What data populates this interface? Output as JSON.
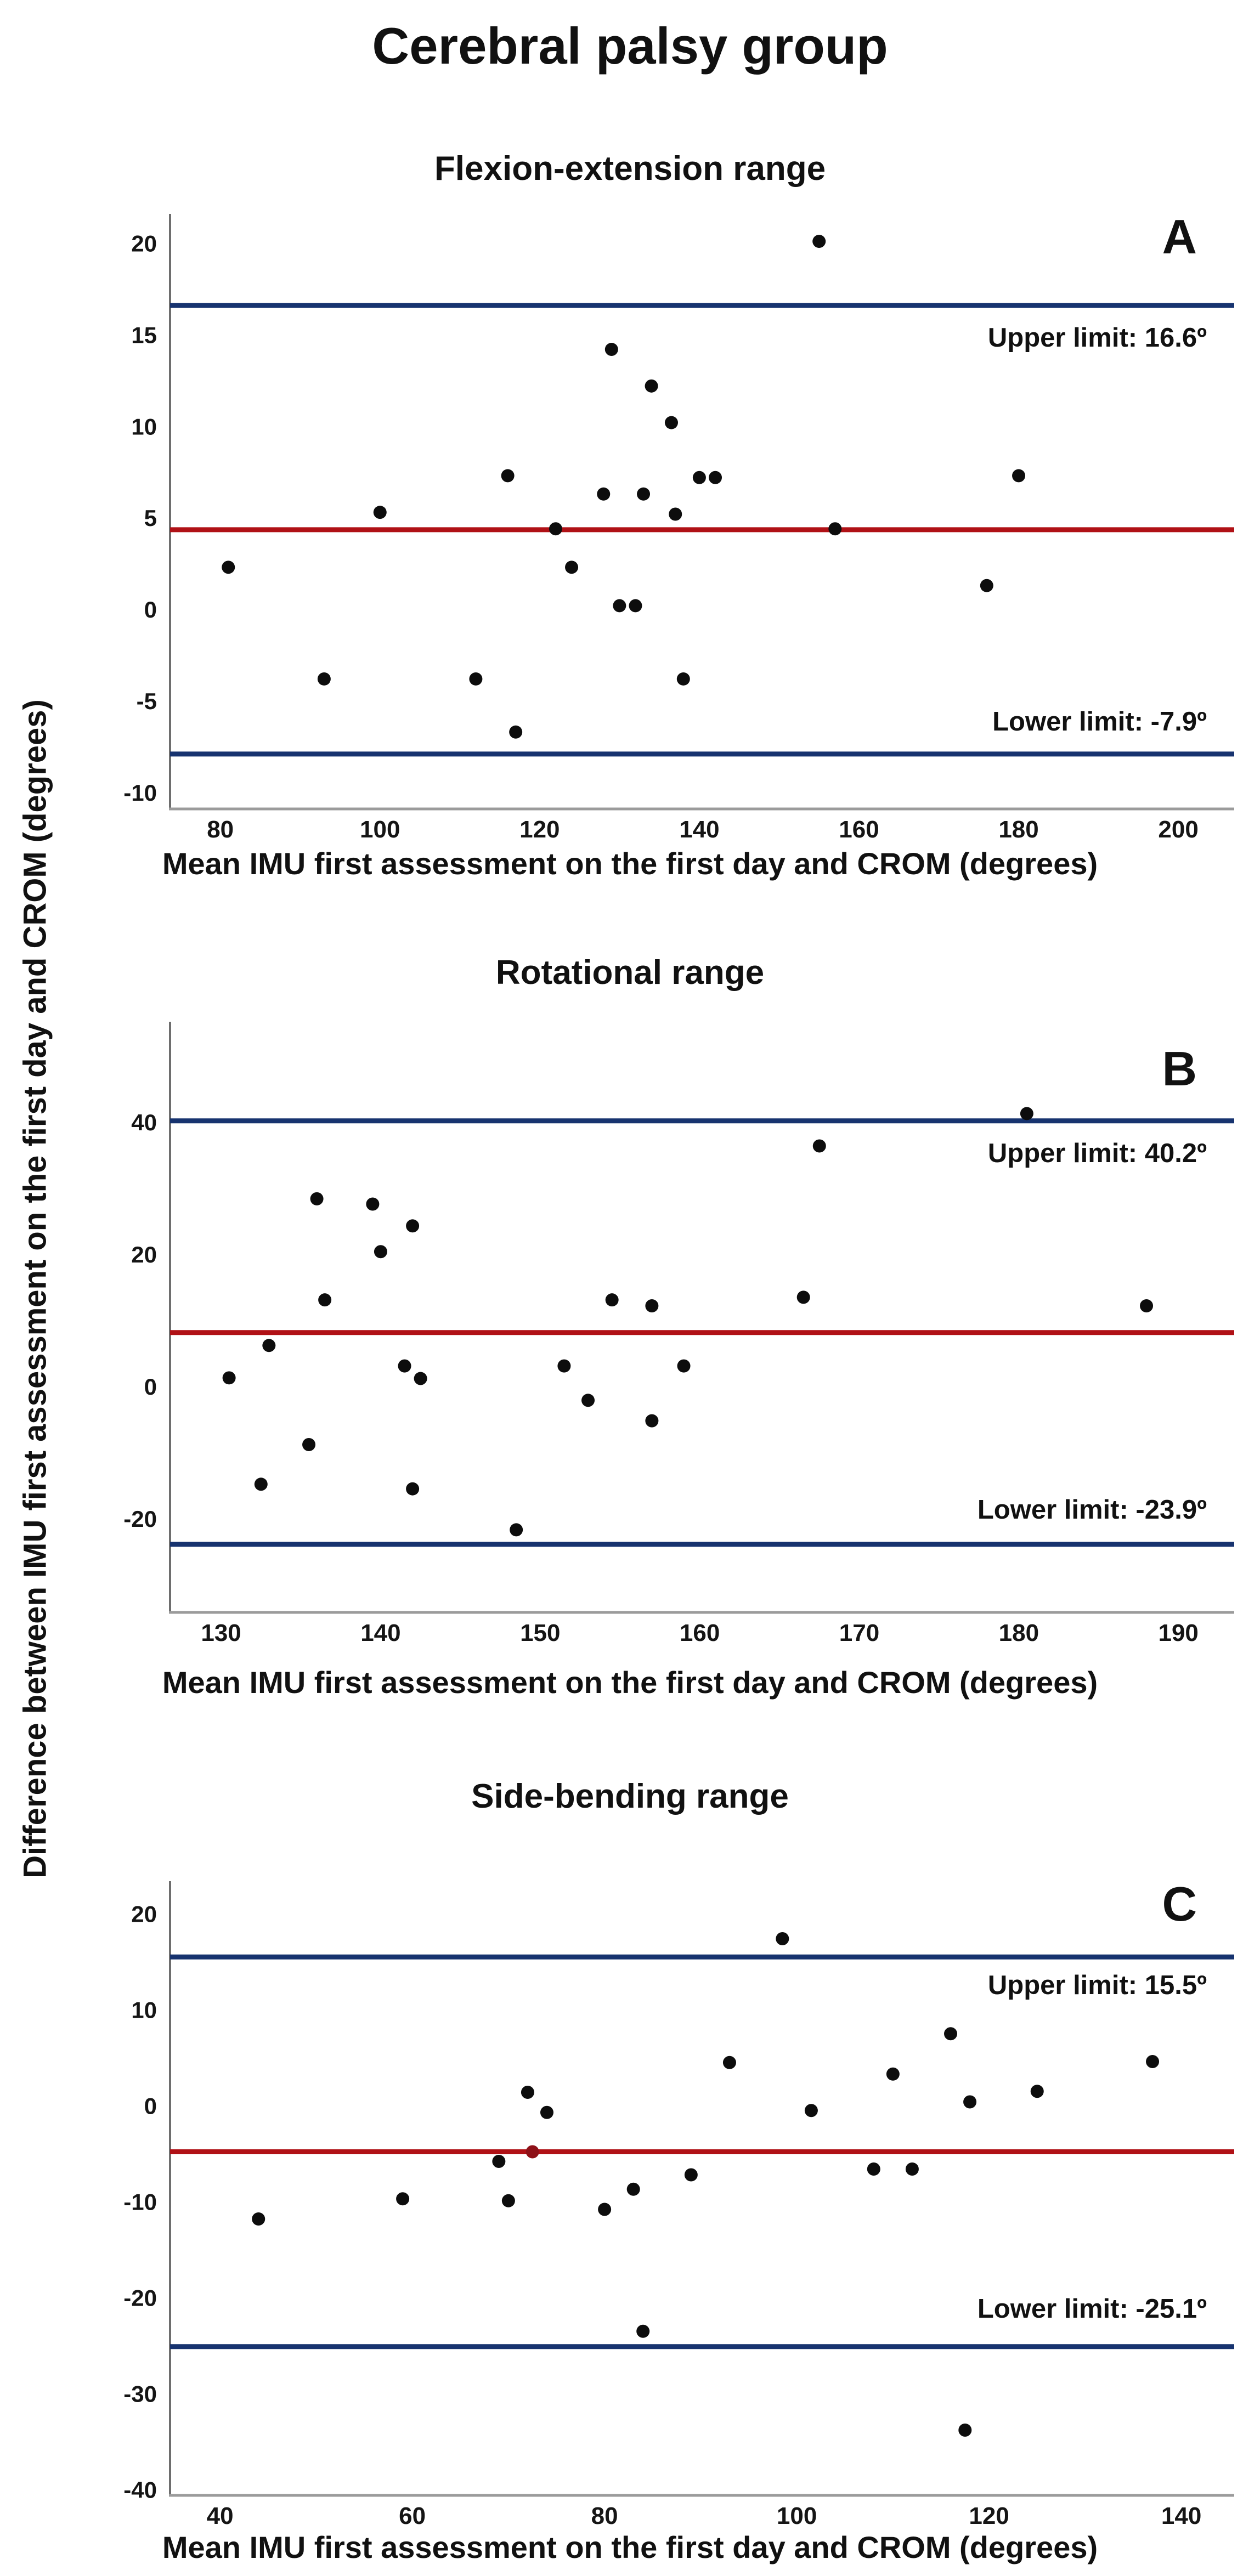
{
  "figure": {
    "main_title": "Cerebral palsy group",
    "y_axis_label": "Difference between IMU first assessment on the first day and CROM (degrees)"
  },
  "colors": {
    "mean_line": "#b01116",
    "limit_line": "#17336f",
    "point": "#0d0d0d",
    "red_point": "#8e1118",
    "axis_left": "#6e6e6e",
    "axis_bottom": "#9b9b9b",
    "text": "#111111"
  },
  "chart_data": [
    {
      "type": "scatter",
      "panel": "A",
      "title": "Flexion-extension range",
      "xlabel": "Mean IMU first assessment on the first day and CROM (degrees)",
      "xlim": [
        73.7,
        207
      ],
      "ylim": [
        -10.9,
        21.6
      ],
      "x_ticks": [
        80,
        100,
        120,
        140,
        160,
        180,
        200
      ],
      "y_ticks": [
        20,
        15,
        10,
        5,
        0,
        -5,
        -10
      ],
      "mean": 4.35,
      "upper_limit": 16.6,
      "lower_limit": -7.9,
      "upper_limit_label": "Upper limit: 16.6º",
      "lower_limit_label": "Lower limit: -7.9º",
      "legend": "none",
      "grid": false,
      "points": [
        [
          81,
          2.3
        ],
        [
          93,
          -3.8
        ],
        [
          100,
          5.3
        ],
        [
          112,
          -3.8
        ],
        [
          116,
          7.3
        ],
        [
          117,
          -6.7
        ],
        [
          122,
          4.4
        ],
        [
          124,
          2.3
        ],
        [
          128,
          6.3
        ],
        [
          129,
          14.2
        ],
        [
          130,
          0.2
        ],
        [
          132,
          0.2
        ],
        [
          133,
          6.3
        ],
        [
          134,
          12.2
        ],
        [
          136.5,
          10.2
        ],
        [
          137,
          5.2
        ],
        [
          138,
          -3.8
        ],
        [
          140,
          7.2
        ],
        [
          142,
          7.2
        ],
        [
          155,
          20.1
        ],
        [
          157,
          4.4
        ],
        [
          176,
          1.3
        ],
        [
          180,
          7.3
        ]
      ]
    },
    {
      "type": "scatter",
      "panel": "B",
      "title": "Rotational range",
      "xlabel": "Mean IMU first assessment on the first day and CROM (degrees)",
      "xlim": [
        126.8,
        193.5
      ],
      "ylim": [
        -34.2,
        55.2
      ],
      "x_ticks": [
        130,
        140,
        150,
        160,
        170,
        180,
        190
      ],
      "y_ticks": [
        40,
        20,
        0,
        -20
      ],
      "mean": 8.15,
      "upper_limit": 40.2,
      "lower_limit": -23.9,
      "upper_limit_label": "Upper limit: 40.2º",
      "lower_limit_label": "Lower limit: -23.9º",
      "legend": "none",
      "grid": false,
      "points": [
        [
          130.5,
          1.3
        ],
        [
          132.5,
          -14.8
        ],
        [
          133,
          6.2
        ],
        [
          135.5,
          -8.8
        ],
        [
          136,
          28.4
        ],
        [
          136.5,
          13.1
        ],
        [
          139.5,
          27.6
        ],
        [
          140,
          20.4
        ],
        [
          141.5,
          3.1
        ],
        [
          142,
          24.3
        ],
        [
          142,
          -15.5
        ],
        [
          142.5,
          1.2
        ],
        [
          148.5,
          -21.7
        ],
        [
          151.5,
          3.1
        ],
        [
          153,
          -2.1
        ],
        [
          154.5,
          13.1
        ],
        [
          157,
          12.2
        ],
        [
          157,
          -5.2
        ],
        [
          159,
          3.1
        ],
        [
          166.5,
          13.5
        ],
        [
          167.5,
          36.4
        ],
        [
          180.5,
          41.3
        ],
        [
          188,
          12.2
        ]
      ]
    },
    {
      "type": "scatter",
      "panel": "C",
      "title": "Side-bending range",
      "xlabel": "Mean IMU first assessment on the first day and CROM (degrees)",
      "xlim": [
        34.8,
        145.5
      ],
      "ylim": [
        -40.6,
        23.4
      ],
      "x_ticks": [
        40,
        60,
        80,
        100,
        120,
        140
      ],
      "y_ticks": [
        20,
        10,
        0,
        -10,
        -20,
        -30,
        -40
      ],
      "mean": -4.8,
      "upper_limit": 15.5,
      "lower_limit": -25.1,
      "upper_limit_label": "Upper limit: 15.5º",
      "lower_limit_label": "Lower limit: -25.1º",
      "legend": "none",
      "grid": false,
      "points": [
        [
          44,
          -11.8
        ],
        [
          59,
          -9.7
        ],
        [
          69,
          -5.8
        ],
        [
          70,
          -9.9
        ],
        [
          72,
          1.4
        ],
        [
          74,
          -0.7
        ],
        [
          80,
          -10.8
        ],
        [
          83,
          -8.7
        ],
        [
          84,
          -23.5
        ],
        [
          89,
          -7.2
        ],
        [
          93,
          4.5
        ],
        [
          98.5,
          17.4
        ],
        [
          101.5,
          -0.5
        ],
        [
          108,
          -6.6
        ],
        [
          110,
          3.3
        ],
        [
          112,
          -6.6
        ],
        [
          116,
          7.5
        ],
        [
          117.5,
          -33.8
        ],
        [
          118,
          0.4
        ],
        [
          125,
          1.5
        ],
        [
          137,
          4.6
        ]
      ],
      "red_point": [
        72.5,
        -4.8
      ]
    }
  ]
}
